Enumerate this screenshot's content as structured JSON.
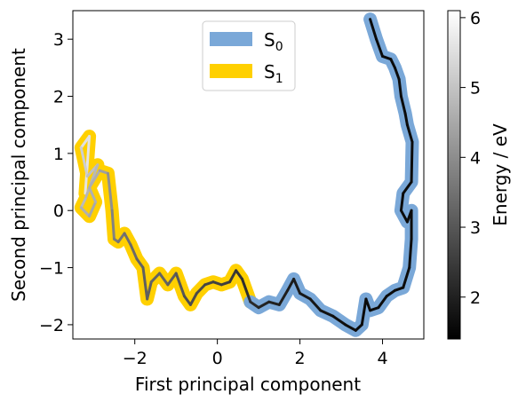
{
  "chart_data": {
    "type": "line",
    "title": "",
    "xlabel": "First principal component",
    "ylabel": "Second principal component",
    "xlim": [
      -3.5,
      5.0
    ],
    "ylim": [
      -2.25,
      3.5
    ],
    "xticks": [
      -2,
      0,
      2,
      4
    ],
    "xtick_labels": [
      "−2",
      "0",
      "2",
      "4"
    ],
    "yticks": [
      -2,
      -1,
      0,
      1,
      2,
      3
    ],
    "ytick_labels": [
      "−2",
      "−1",
      "0",
      "1",
      "2",
      "3"
    ],
    "grid": false,
    "legend_position": "top-center",
    "legend": [
      {
        "base": "S",
        "sub": "1",
        "color": "#ffd000",
        "series": "S1"
      },
      {
        "base": "S",
        "sub": "0",
        "color": "#7aa8d8",
        "series": "S0"
      }
    ],
    "series": [
      {
        "id": "S1",
        "color": "#ffd000",
        "x": [
          -3.2,
          -3.1,
          -3.3,
          -3.15,
          -2.9,
          -3.05,
          -3.2,
          -3.3,
          -3.1,
          -2.95,
          -3.1,
          -2.85,
          -2.65,
          -2.55,
          -2.5,
          -2.4,
          -2.25,
          -2.1,
          -1.95,
          -1.8,
          -1.7,
          -1.6,
          -1.4,
          -1.2,
          -1.0,
          -0.8,
          -0.65,
          -0.5,
          -0.3,
          -0.1,
          0.1,
          0.3,
          0.45,
          0.6,
          0.8
        ],
        "y": [
          0.3,
          1.3,
          1.1,
          0.6,
          0.8,
          0.5,
          0.2,
          0.05,
          -0.1,
          0.15,
          0.4,
          0.7,
          0.65,
          0.0,
          -0.5,
          -0.55,
          -0.4,
          -0.6,
          -0.85,
          -1.0,
          -1.55,
          -1.25,
          -1.1,
          -1.3,
          -1.1,
          -1.5,
          -1.65,
          -1.45,
          -1.3,
          -1.25,
          -1.3,
          -1.25,
          -1.05,
          -1.2,
          -1.6
        ],
        "energy": [
          5.5,
          5.7,
          5.4,
          5.0,
          4.9,
          4.7,
          4.8,
          4.9,
          4.4,
          4.6,
          4.7,
          4.5,
          4.2,
          3.9,
          3.7,
          3.6,
          3.5,
          3.4,
          3.3,
          3.2,
          3.1,
          3.2,
          3.3,
          3.2,
          3.1,
          2.9,
          2.8,
          2.8,
          2.7,
          2.6,
          2.6,
          2.5,
          2.4,
          2.3,
          2.2
        ]
      },
      {
        "id": "S0",
        "color": "#7aa8d8",
        "x": [
          0.8,
          1.0,
          1.25,
          1.5,
          1.7,
          1.85,
          2.0,
          2.25,
          2.5,
          2.8,
          3.1,
          3.35,
          3.5,
          3.6,
          3.7,
          3.9,
          4.1,
          4.3,
          4.5,
          4.65,
          4.7,
          4.7,
          4.6,
          4.45,
          4.5,
          4.7,
          4.72,
          4.6,
          4.55,
          4.45,
          4.4,
          4.3,
          4.2,
          4.0,
          3.85,
          3.7
        ],
        "y": [
          -1.6,
          -1.7,
          -1.6,
          -1.65,
          -1.4,
          -1.2,
          -1.45,
          -1.55,
          -1.75,
          -1.85,
          -2.0,
          -2.1,
          -2.0,
          -1.55,
          -1.75,
          -1.7,
          -1.5,
          -1.4,
          -1.35,
          -1.0,
          -0.5,
          0.0,
          -0.2,
          0.0,
          0.3,
          0.5,
          1.2,
          1.5,
          1.7,
          2.0,
          2.3,
          2.5,
          2.65,
          2.7,
          3.0,
          3.35
        ],
        "energy": [
          2.2,
          2.1,
          2.0,
          2.0,
          1.9,
          1.9,
          1.9,
          1.8,
          1.8,
          1.7,
          1.7,
          1.6,
          1.6,
          1.6,
          1.6,
          1.6,
          1.6,
          1.6,
          1.6,
          1.6,
          1.6,
          1.6,
          1.6,
          1.6,
          1.6,
          1.6,
          1.6,
          1.6,
          1.6,
          1.6,
          1.6,
          1.6,
          1.6,
          1.6,
          1.6,
          1.6
        ]
      }
    ],
    "colorbar": {
      "label": "Energy / eV",
      "colormap": "gray",
      "range": [
        1.4,
        6.1
      ],
      "ticks": [
        2,
        3,
        4,
        5,
        6
      ],
      "tick_labels": [
        "2",
        "3",
        "4",
        "5",
        "6"
      ]
    }
  }
}
